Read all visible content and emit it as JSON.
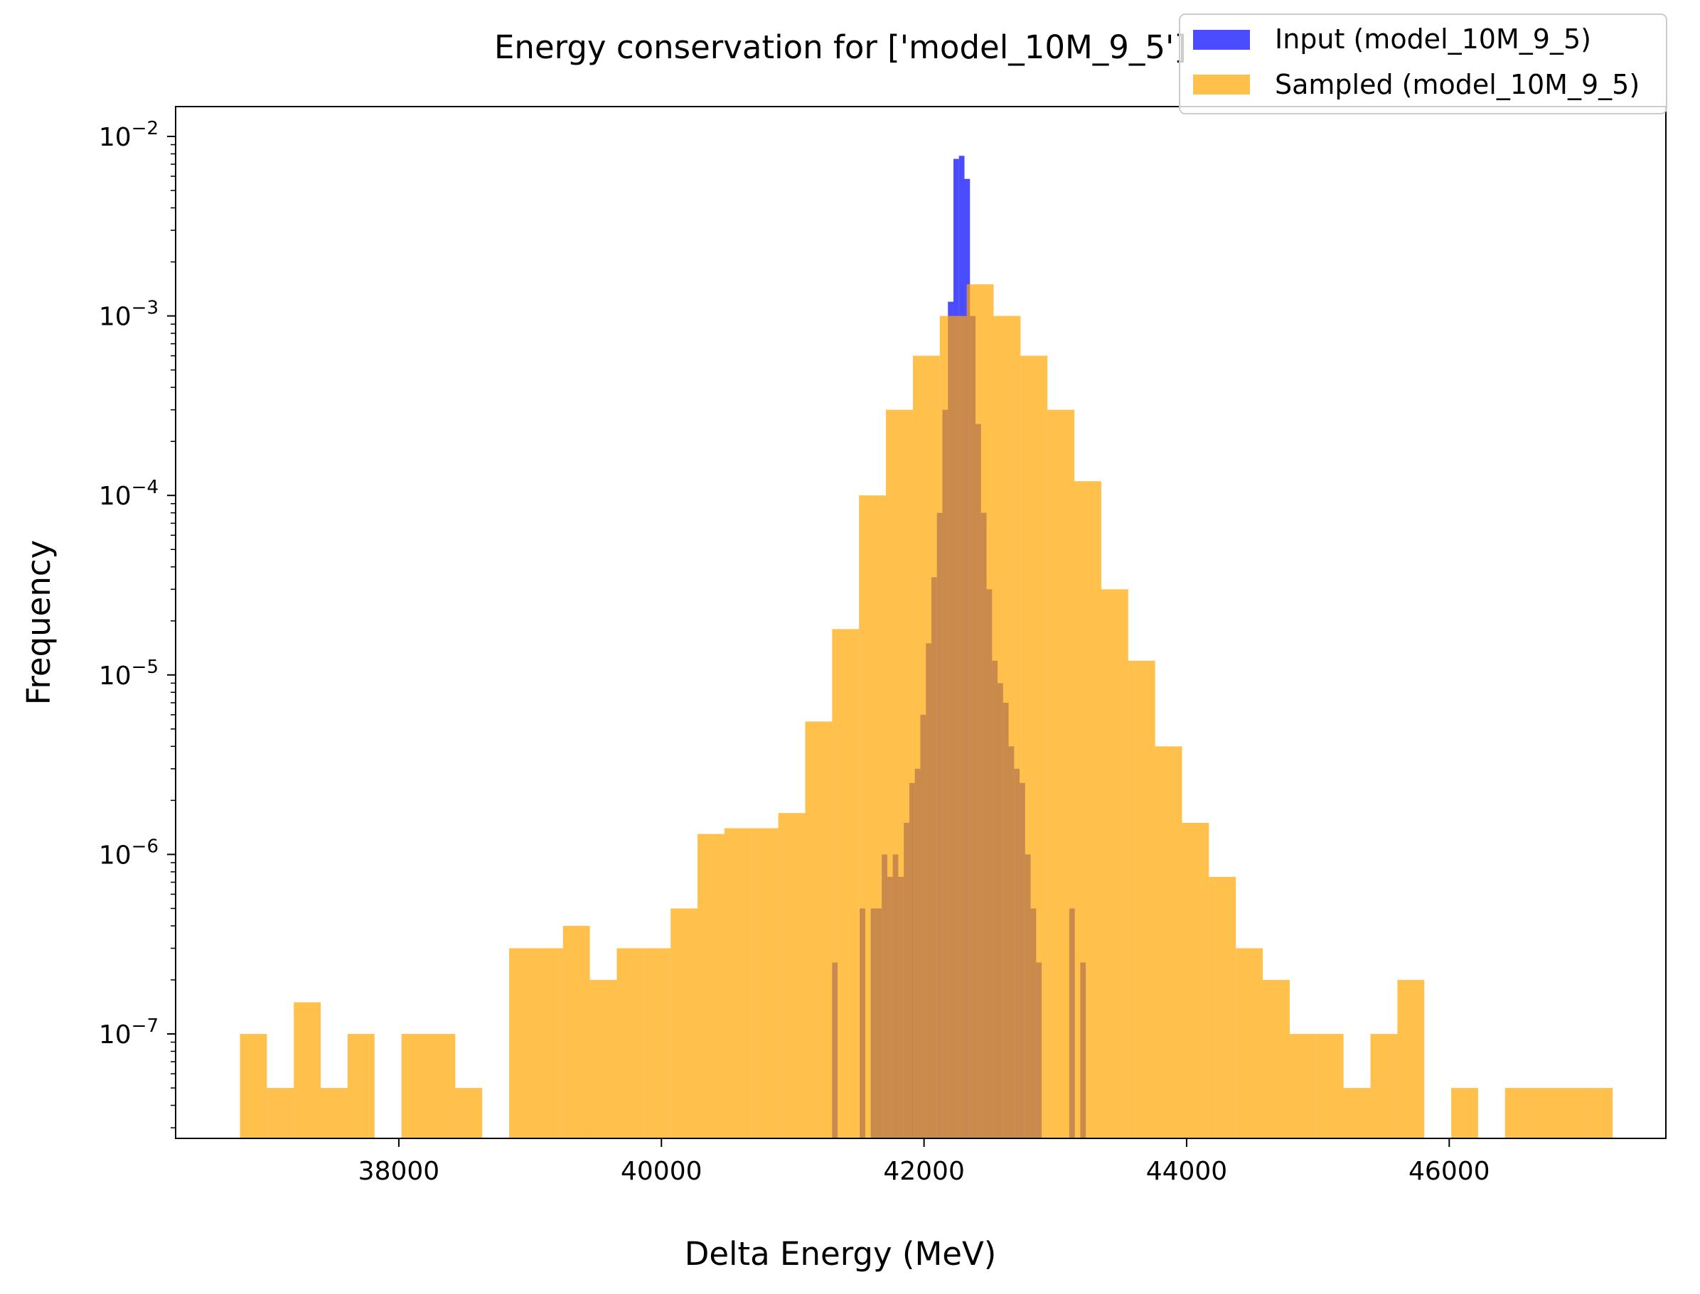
{
  "chart_data": {
    "type": "bar",
    "title": "Energy conservation for ['model_10M_9_5']",
    "xlabel": "Delta Energy (MeV)",
    "ylabel": "Frequency",
    "xlim": [
      36300,
      47650
    ],
    "ylim_log10": [
      -7.55,
      -6.83
    ],
    "x_ticks": [
      38000,
      40000,
      42000,
      44000,
      46000
    ],
    "x_tick_labels": [
      "38000",
      "40000",
      "42000",
      "44000",
      "46000"
    ],
    "y_ticks": [
      -7,
      -6,
      -5,
      -4,
      -3,
      -2
    ],
    "y_tick_labels": [
      {
        "base": "10",
        "exp": "−7"
      },
      {
        "base": "10",
        "exp": "−6"
      },
      {
        "base": "10",
        "exp": "−5"
      },
      {
        "base": "10",
        "exp": "−4"
      },
      {
        "base": "10",
        "exp": "−3"
      },
      {
        "base": "10",
        "exp": "−2"
      }
    ],
    "y_scale": "log",
    "grid": false,
    "legend_placement": "top-right",
    "series": [
      {
        "name": "Input (model_10M_9_5)",
        "color": "#0000ff",
        "alpha": 0.7,
        "x_start": 41300,
        "bin_width": 42,
        "values": [
          2.5e-07,
          0,
          0,
          0,
          0,
          5e-07,
          0,
          5e-07,
          5e-07,
          1e-06,
          7.5e-07,
          1e-06,
          7.5e-07,
          1.5e-06,
          2.5e-06,
          3e-06,
          6e-06,
          1.5e-05,
          3.5e-05,
          8e-05,
          0.0003,
          0.0012,
          0.0075,
          0.0078,
          0.0058,
          0.001,
          0.00025,
          8e-05,
          3e-05,
          1.2e-05,
          9e-06,
          7e-06,
          4e-06,
          3e-06,
          2.5e-06,
          1e-06,
          5e-07,
          2.5e-07,
          0,
          0,
          0,
          0,
          0,
          5e-07,
          0,
          2.5e-07,
          0,
          0
        ]
      },
      {
        "name": "Sampled (model_10M_9_5)",
        "color": "#ffa500",
        "alpha": 0.7,
        "x_start": 36790,
        "bin_width": 205,
        "values": [
          1e-07,
          5e-08,
          1.5e-07,
          5e-08,
          1e-07,
          0,
          1e-07,
          1e-07,
          5e-08,
          0,
          3e-07,
          3e-07,
          4e-07,
          2e-07,
          3e-07,
          3e-07,
          5e-07,
          1.3e-06,
          1.4e-06,
          1.4e-06,
          1.7e-06,
          5.5e-06,
          1.8e-05,
          0.0001,
          0.0003,
          0.0006,
          0.001,
          0.0015,
          0.001,
          0.0006,
          0.0003,
          0.00012,
          3e-05,
          1.2e-05,
          4e-06,
          1.5e-06,
          7.5e-07,
          3e-07,
          2e-07,
          1e-07,
          1e-07,
          5e-08,
          1e-07,
          2e-07,
          0,
          5e-08,
          0,
          5e-08,
          5e-08,
          5e-08,
          5e-08
        ]
      }
    ]
  }
}
